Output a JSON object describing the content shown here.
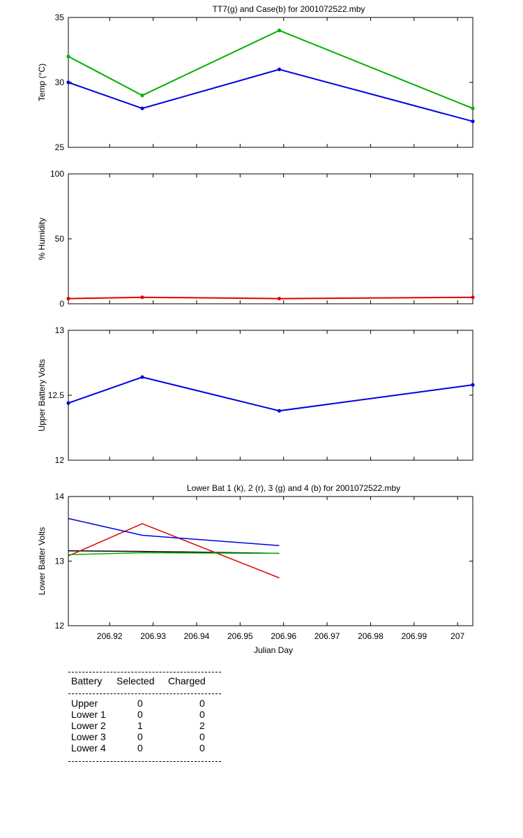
{
  "chart_data": [
    {
      "type": "line",
      "title": "TT7(g) and Case(b) for 2001072522.mby",
      "xlabel": "",
      "ylabel": "Temp  (°C)",
      "xlim": [
        206.9105,
        207.0035
      ],
      "ylim": [
        25,
        35
      ],
      "yticks": [
        "25",
        "30",
        "35"
      ],
      "series": [
        {
          "color": "#00b000",
          "x": [
            206.9105,
            206.9275,
            206.959,
            207.0035
          ],
          "values": [
            32,
            29,
            34,
            28
          ]
        },
        {
          "color": "#0000e0",
          "x": [
            206.9105,
            206.9275,
            206.959,
            207.0035
          ],
          "values": [
            30,
            28,
            31,
            27
          ]
        }
      ]
    },
    {
      "type": "line",
      "title": "",
      "xlabel": "",
      "ylabel": "% Humidity",
      "xlim": [
        206.9105,
        207.0035
      ],
      "ylim": [
        0,
        100
      ],
      "yticks": [
        "0",
        "50",
        "100"
      ],
      "series": [
        {
          "color": "#e00000",
          "x": [
            206.9105,
            206.9275,
            206.959,
            207.0035
          ],
          "values": [
            4,
            5,
            4,
            5
          ]
        }
      ]
    },
    {
      "type": "line",
      "title": "",
      "xlabel": "",
      "ylabel": "Upper Battery Volts",
      "xlim": [
        206.9105,
        207.0035
      ],
      "ylim": [
        12,
        13
      ],
      "yticks": [
        "12",
        "12.5",
        "13"
      ],
      "series": [
        {
          "color": "#0000e0",
          "x": [
            206.9105,
            206.9275,
            206.959,
            207.0035
          ],
          "values": [
            12.44,
            12.64,
            12.38,
            12.58
          ]
        }
      ]
    },
    {
      "type": "line",
      "title": "Lower Bat 1 (k), 2 (r), 3 (g) and 4 (b) for 2001072522.mby",
      "xlabel": "Julian Day",
      "ylabel": "Lower Batter Volts",
      "xlim": [
        206.9105,
        207.0035
      ],
      "ylim": [
        12,
        14
      ],
      "yticks": [
        "12",
        "13",
        "14"
      ],
      "xticks": [
        "206.92",
        "206.93",
        "206.94",
        "206.95",
        "206.96",
        "206.97",
        "206.98",
        "206.99",
        "207"
      ],
      "xtick_values": [
        206.92,
        206.93,
        206.94,
        206.95,
        206.96,
        206.97,
        206.98,
        206.99,
        207.0
      ],
      "series": [
        {
          "color": "#000000",
          "x": [
            206.9105,
            206.9275,
            206.959
          ],
          "values": [
            13.16,
            13.15,
            13.12
          ]
        },
        {
          "color": "#e00000",
          "x": [
            206.9105,
            206.9275,
            206.959
          ],
          "values": [
            13.08,
            13.58,
            12.74
          ]
        },
        {
          "color": "#00b000",
          "x": [
            206.9105,
            206.9275,
            206.959
          ],
          "values": [
            13.1,
            13.13,
            13.12
          ]
        },
        {
          "color": "#0000e0",
          "x": [
            206.9105,
            206.9275,
            206.959
          ],
          "values": [
            13.66,
            13.4,
            13.24
          ]
        }
      ]
    }
  ],
  "table": {
    "headers": [
      "Battery",
      "Selected",
      "Charged"
    ],
    "rows": [
      [
        "Upper",
        "0",
        "0"
      ],
      [
        "Lower 1",
        "0",
        "0"
      ],
      [
        "Lower 2",
        "1",
        "2"
      ],
      [
        "Lower 3",
        "0",
        "0"
      ],
      [
        "Lower 4",
        "0",
        "0"
      ]
    ]
  }
}
